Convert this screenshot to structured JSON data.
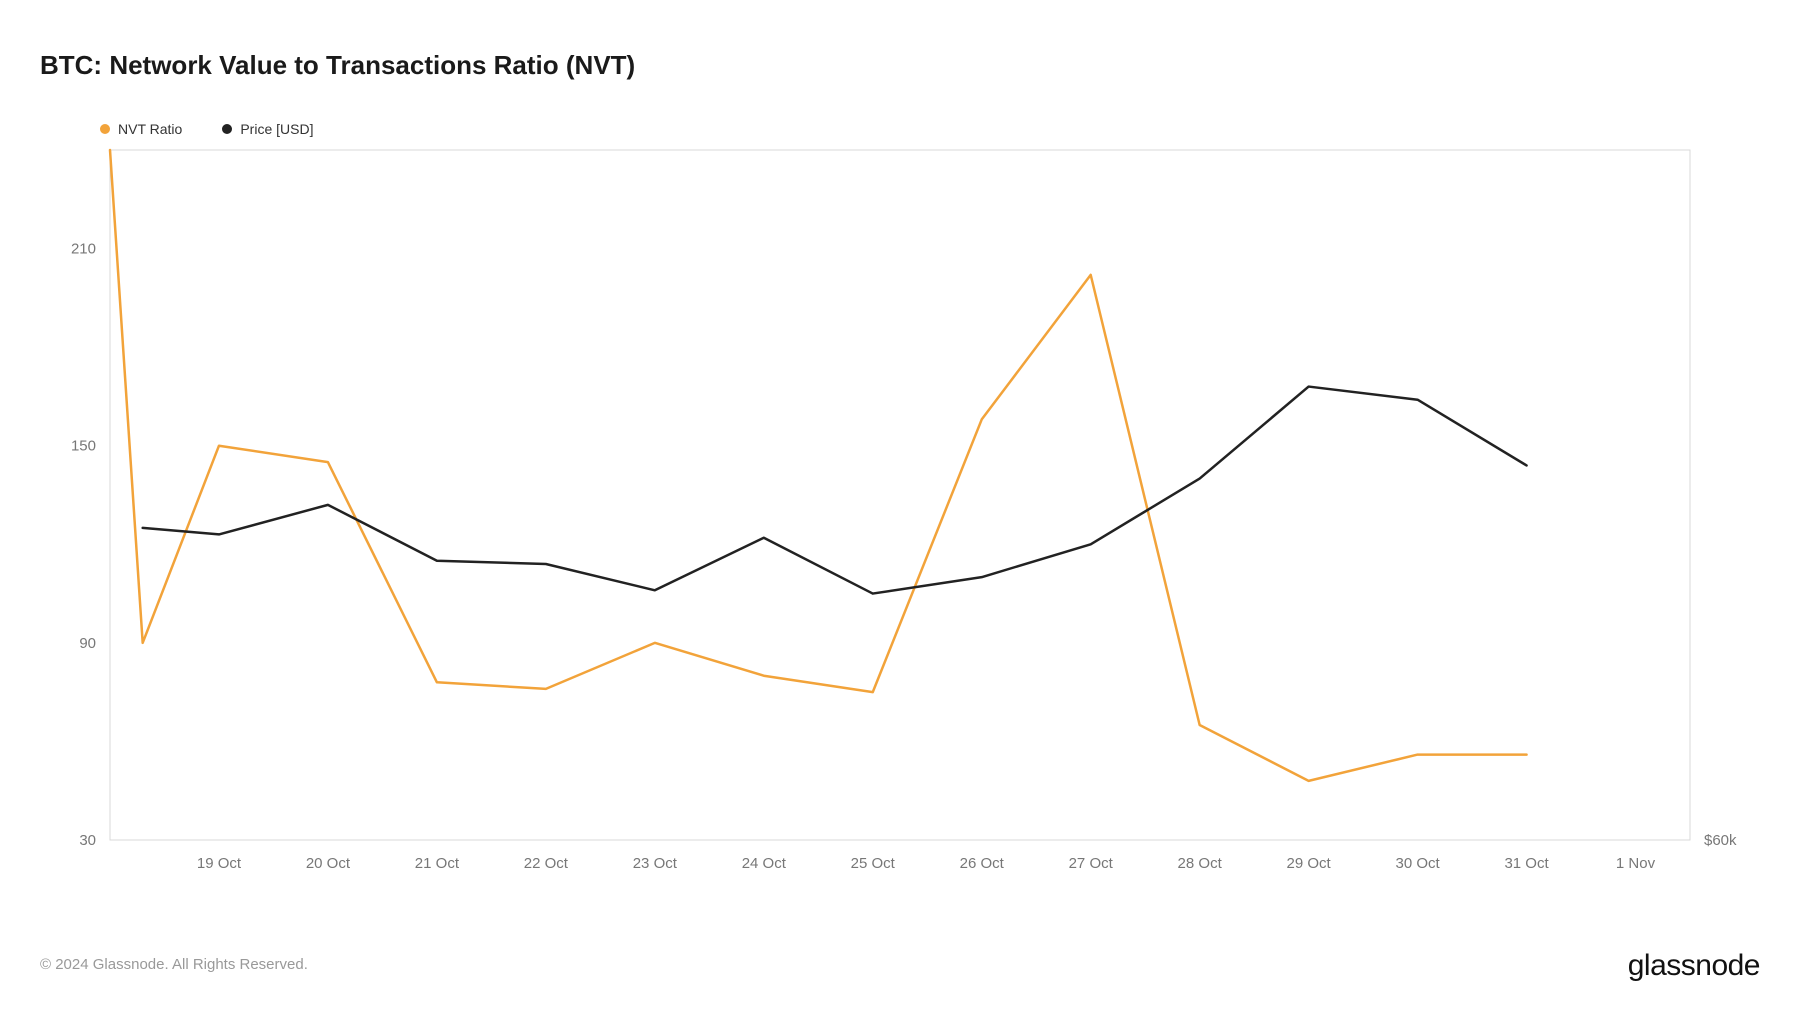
{
  "title": "BTC: Network Value to Transactions Ratio (NVT)",
  "legend": [
    {
      "label": "NVT Ratio",
      "color": "#f2a33a"
    },
    {
      "label": "Price [USD]",
      "color": "#222222"
    }
  ],
  "chart": {
    "type": "line",
    "background_color": "#ffffff",
    "plot_border_color": "#d9d9d9",
    "plot_border_width": 1,
    "x_labels": [
      "19 Oct",
      "20 Oct",
      "21 Oct",
      "22 Oct",
      "23 Oct",
      "24 Oct",
      "25 Oct",
      "26 Oct",
      "27 Oct",
      "28 Oct",
      "29 Oct",
      "30 Oct",
      "31 Oct",
      "1 Nov"
    ],
    "x_positions": [
      1,
      2,
      3,
      4,
      5,
      6,
      7,
      8,
      9,
      10,
      11,
      12,
      13,
      14
    ],
    "x_domain": [
      0,
      14.5
    ],
    "y_left": {
      "ticks": [
        30,
        90,
        150,
        210
      ],
      "domain": [
        30,
        240
      ],
      "label_fontsize": 15,
      "label_color": "#777777"
    },
    "y_right": {
      "ticks": [
        {
          "v": 30,
          "label": "$60k"
        }
      ],
      "label_fontsize": 15,
      "label_color": "#777777"
    },
    "series": [
      {
        "name": "NVT Ratio",
        "color": "#f2a33a",
        "width": 2.5,
        "points": [
          {
            "x": 0.0,
            "y": 240
          },
          {
            "x": 0.3,
            "y": 90
          },
          {
            "x": 1.0,
            "y": 150
          },
          {
            "x": 2.0,
            "y": 145
          },
          {
            "x": 3.0,
            "y": 78
          },
          {
            "x": 4.0,
            "y": 76
          },
          {
            "x": 5.0,
            "y": 90
          },
          {
            "x": 6.0,
            "y": 80
          },
          {
            "x": 7.0,
            "y": 75
          },
          {
            "x": 8.0,
            "y": 158
          },
          {
            "x": 9.0,
            "y": 202
          },
          {
            "x": 10.0,
            "y": 65
          },
          {
            "x": 11.0,
            "y": 48
          },
          {
            "x": 12.0,
            "y": 56
          },
          {
            "x": 13.0,
            "y": 56
          }
        ]
      },
      {
        "name": "Price [USD]",
        "color": "#222222",
        "width": 2.5,
        "points": [
          {
            "x": 0.3,
            "y": 125
          },
          {
            "x": 1.0,
            "y": 123
          },
          {
            "x": 2.0,
            "y": 132
          },
          {
            "x": 3.0,
            "y": 115
          },
          {
            "x": 4.0,
            "y": 114
          },
          {
            "x": 5.0,
            "y": 106
          },
          {
            "x": 6.0,
            "y": 122
          },
          {
            "x": 7.0,
            "y": 105
          },
          {
            "x": 8.0,
            "y": 110
          },
          {
            "x": 9.0,
            "y": 120
          },
          {
            "x": 10.0,
            "y": 140
          },
          {
            "x": 11.0,
            "y": 168
          },
          {
            "x": 12.0,
            "y": 164
          },
          {
            "x": 13.0,
            "y": 144
          }
        ]
      }
    ],
    "axis_fontsize": 15
  },
  "footer": {
    "copyright": "© 2024 Glassnode. All Rights Reserved.",
    "brand": "glassnode"
  }
}
